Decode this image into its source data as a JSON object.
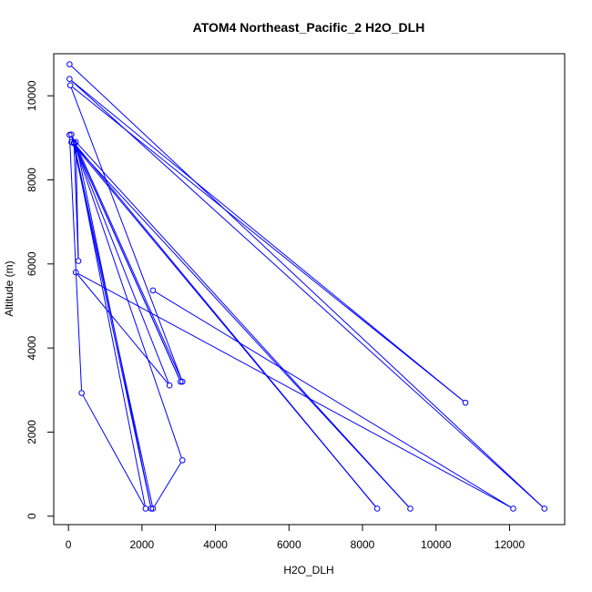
{
  "chart_data": {
    "type": "line",
    "title": "ATOM4 Northeast_Pacific_2 H2O_DLH",
    "xlabel": "H2O_DLH",
    "ylabel": "Altitude (m)",
    "xlim": [
      -400,
      13500
    ],
    "ylim": [
      -200,
      11000
    ],
    "xticks": [
      0,
      2000,
      4000,
      6000,
      8000,
      10000,
      12000
    ],
    "yticks": [
      0,
      2000,
      4000,
      6000,
      8000,
      10000
    ],
    "grid": false,
    "series": [
      {
        "color": "#0000ff",
        "marker": "open-circle",
        "x": [
          30,
          12950,
          30,
          10800,
          50,
          3100,
          80,
          2250,
          200,
          270,
          150,
          2300,
          3100,
          150,
          2100,
          360,
          30,
          9300,
          80,
          8400,
          150,
          3050,
          150,
          2750,
          200,
          12100,
          2300
        ],
        "y": [
          10750,
          180,
          10400,
          2700,
          10250,
          3200,
          9080,
          180,
          8900,
          6070,
          8870,
          180,
          1330,
          8880,
          180,
          2930,
          9070,
          180,
          8900,
          180,
          8880,
          3200,
          8880,
          3110,
          5800,
          180,
          5370
        ]
      }
    ]
  }
}
